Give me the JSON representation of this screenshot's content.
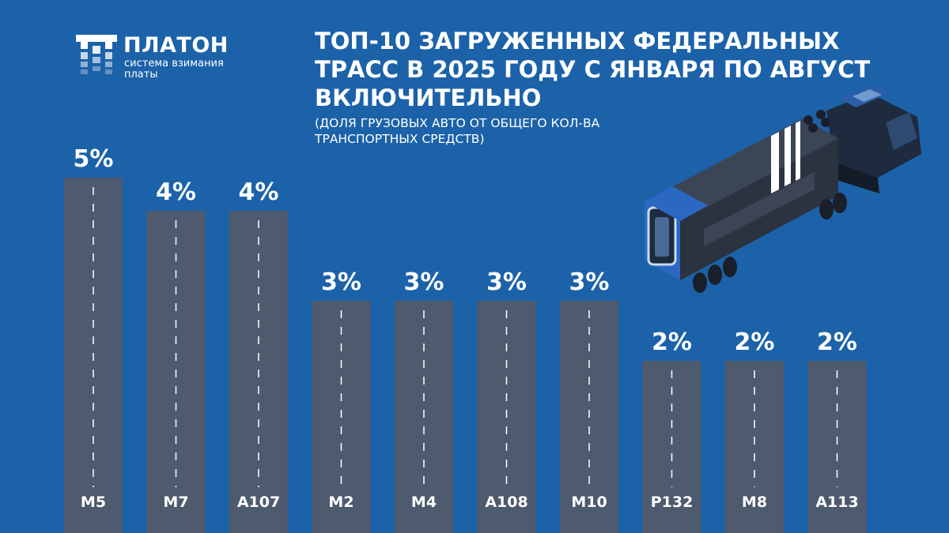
{
  "logo": {
    "title": "ПЛАТОН",
    "subtitle": "система взимания платы"
  },
  "header": {
    "title": "ТОП-10 загруженных федеральных трасс в 2025 году с января по август включительно",
    "subtitle": "(доля грузовых авто от общего кол-ва транспортных средств)"
  },
  "colors": {
    "background": "#1c62a9",
    "bar": "#4e5a6e",
    "text": "#ffffff"
  },
  "chart_data": {
    "type": "bar",
    "categories": [
      "М5",
      "М7",
      "А107",
      "М2",
      "М4",
      "А108",
      "М10",
      "Р132",
      "М8",
      "А113"
    ],
    "values": [
      5,
      4,
      4,
      3,
      3,
      3,
      3,
      2,
      2,
      2
    ],
    "data_labels": [
      "5%",
      "4%",
      "4%",
      "3%",
      "3%",
      "3%",
      "3%",
      "2%",
      "2%",
      "2%"
    ],
    "unit": "%",
    "grid": false,
    "legend": "none"
  }
}
